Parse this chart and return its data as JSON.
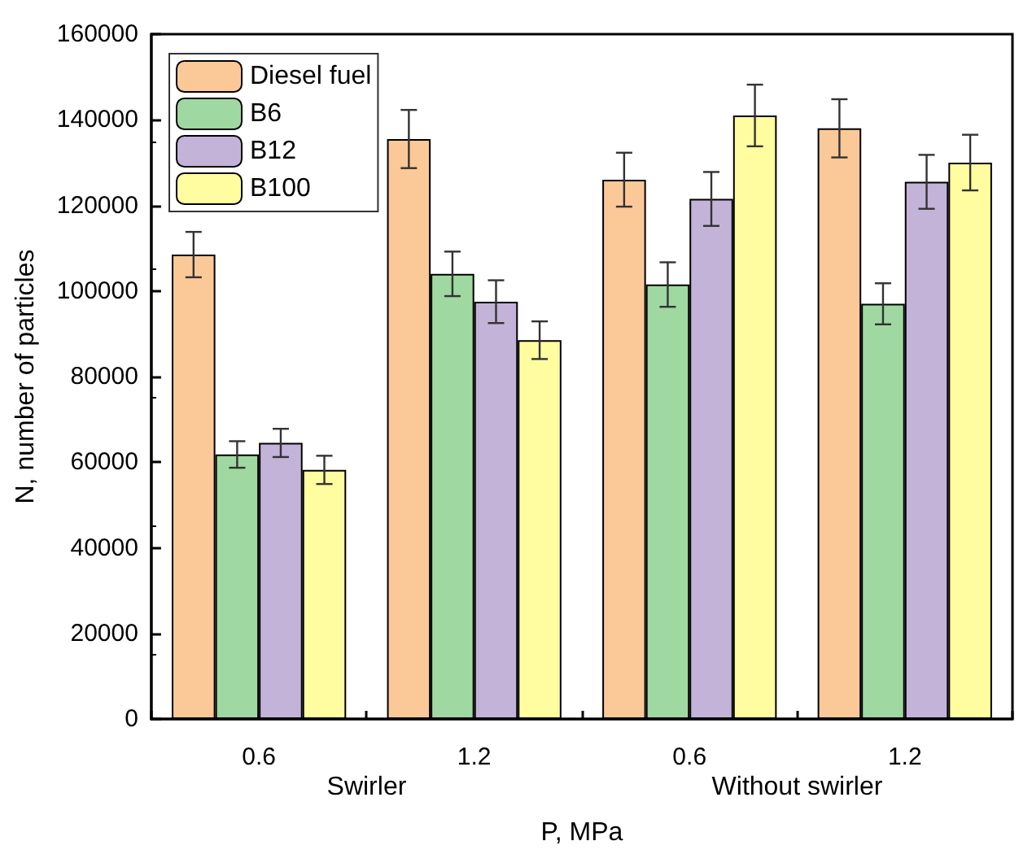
{
  "chart_data": {
    "type": "bar",
    "xlabel": "P, MPa",
    "ylabel": "N, number of particles",
    "categories": [
      "0.6",
      "1.2",
      "0.6",
      "1.2"
    ],
    "series": [
      {
        "name": "Diesel fuel",
        "color": "#fbc898",
        "values": [
          108500,
          135500,
          126000,
          138000
        ],
        "errors": [
          5300,
          6800,
          6300,
          6800
        ]
      },
      {
        "name": "B6",
        "color": "#9fd8a0",
        "values": [
          61800,
          104000,
          101500,
          97000
        ],
        "errors": [
          3100,
          5200,
          5200,
          4800
        ]
      },
      {
        "name": "B12",
        "color": "#c3b3d8",
        "values": [
          64500,
          97500,
          121500,
          125500
        ],
        "errors": [
          3300,
          5000,
          6300,
          6300
        ]
      },
      {
        "name": "B100",
        "color": "#fffd9f",
        "values": [
          58200,
          88500,
          141000,
          130000
        ],
        "errors": [
          3300,
          4400,
          7200,
          6500
        ]
      }
    ],
    "annotations": [
      "Swirler",
      "Without swirler"
    ],
    "ylim": [
      0,
      160000
    ],
    "yticks": [
      0,
      20000,
      40000,
      60000,
      80000,
      100000,
      120000,
      140000,
      160000
    ],
    "grid": false,
    "legend": "top left"
  }
}
